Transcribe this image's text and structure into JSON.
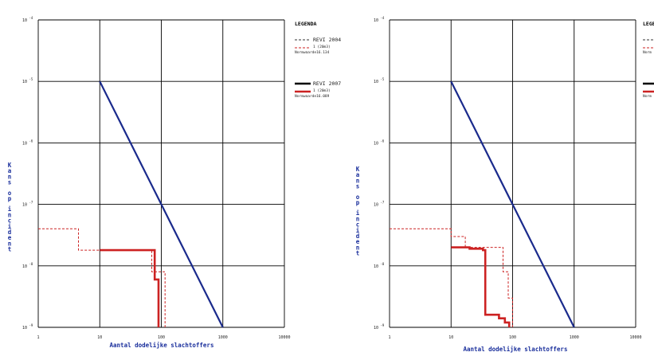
{
  "chart_data": [
    {
      "type": "line",
      "xscale": "log",
      "yscale": "log",
      "xlim": [
        1,
        10000
      ],
      "ylim": [
        1e-09,
        0.0001
      ],
      "x_ticks": [
        "1",
        "10",
        "100",
        "1000",
        "10000"
      ],
      "y_ticks": [
        {
          "base": "10",
          "exp": "-4"
        },
        {
          "base": "10",
          "exp": "-5"
        },
        {
          "base": "10",
          "exp": "-6"
        },
        {
          "base": "10",
          "exp": "-7"
        },
        {
          "base": "10",
          "exp": "-8"
        },
        {
          "base": "10",
          "exp": "-9"
        }
      ],
      "xlabel": "Aantal dodelijke slachtoffers",
      "ylabel": "Kans op incident",
      "grid": true,
      "legend": {
        "title": "LEGENDA",
        "entries": [
          {
            "label": "REVI 2004",
            "sub": "1 (20m3)",
            "norm": "Normwaarde16.134",
            "color": "#cc2222",
            "style": "dashed"
          },
          {
            "label": "REVI 2007",
            "sub": "1 (20m3)",
            "norm": "Normwaarde16.089",
            "color": "#cc2222",
            "style": "solid"
          }
        ]
      },
      "norm_line": {
        "color": "#1a2a8c",
        "x": [
          10,
          1000
        ],
        "y": [
          1e-05,
          1e-09
        ]
      },
      "series": [
        {
          "name": "REVI 2004",
          "style": "dashed",
          "color": "#cc2222",
          "points": [
            [
              1,
              4e-08
            ],
            [
              4.5,
              4e-08
            ],
            [
              4.5,
              1.8e-08
            ],
            [
              70,
              1.8e-08
            ],
            [
              70,
              8e-09
            ],
            [
              115,
              8e-09
            ],
            [
              115,
              1e-09
            ]
          ]
        },
        {
          "name": "REVI 2007",
          "style": "solid",
          "color": "#cc2222",
          "points": [
            [
              10,
              1.8e-08
            ],
            [
              78,
              1.8e-08
            ],
            [
              78,
              6e-09
            ],
            [
              90,
              6e-09
            ],
            [
              90,
              1e-09
            ]
          ]
        }
      ]
    },
    {
      "type": "line",
      "xscale": "log",
      "yscale": "log",
      "xlim": [
        1,
        10000
      ],
      "ylim": [
        1e-09,
        0.0001
      ],
      "x_ticks": [
        "1",
        "10",
        "100",
        "1000",
        "10000"
      ],
      "y_ticks": [
        {
          "base": "10",
          "exp": "-4"
        },
        {
          "base": "10",
          "exp": "-5"
        },
        {
          "base": "10",
          "exp": "-6"
        },
        {
          "base": "10",
          "exp": "-7"
        },
        {
          "base": "10",
          "exp": "-8"
        },
        {
          "base": "10",
          "exp": "-9"
        }
      ],
      "xlabel": "Aantal dodelijke slachtoffers",
      "ylabel": "Kans op incident",
      "grid": true,
      "legend": {
        "title": "LEGE",
        "entries": [
          {
            "label": "",
            "sub": "",
            "norm": "Norm",
            "color": "#cc2222",
            "style": "dashed"
          },
          {
            "label": "",
            "sub": "",
            "norm": "Norm",
            "color": "#cc2222",
            "style": "solid"
          }
        ]
      },
      "norm_line": {
        "color": "#1a2a8c",
        "x": [
          10,
          1000
        ],
        "y": [
          1e-05,
          1e-09
        ]
      },
      "series": [
        {
          "name": "REVI 2004",
          "style": "dashed",
          "color": "#cc2222",
          "points": [
            [
              1,
              4e-08
            ],
            [
              10,
              4e-08
            ],
            [
              10,
              3e-08
            ],
            [
              17,
              3e-08
            ],
            [
              17,
              2e-08
            ],
            [
              70,
              2e-08
            ],
            [
              70,
              8e-09
            ],
            [
              85,
              8e-09
            ],
            [
              85,
              3e-09
            ],
            [
              100,
              3e-09
            ],
            [
              100,
              1e-09
            ]
          ]
        },
        {
          "name": "REVI 2007",
          "style": "solid",
          "color": "#cc2222",
          "points": [
            [
              10,
              2e-08
            ],
            [
              20,
              2e-08
            ],
            [
              20,
              1.9e-08
            ],
            [
              33,
              1.9e-08
            ],
            [
              33,
              1.8e-08
            ],
            [
              36,
              1.8e-08
            ],
            [
              36,
              1.6e-09
            ],
            [
              60,
              1.6e-09
            ],
            [
              60,
              1.4e-09
            ],
            [
              75,
              1.4e-09
            ],
            [
              75,
              1.2e-09
            ],
            [
              88,
              1.2e-09
            ],
            [
              88,
              1e-09
            ]
          ]
        }
      ]
    }
  ]
}
